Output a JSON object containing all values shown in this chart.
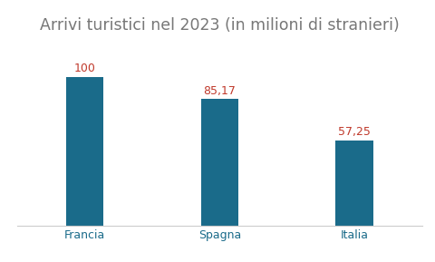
{
  "title": "Arrivi turistici nel 2023 (in milioni di stranieri)",
  "categories": [
    "Francia",
    "Spagna",
    "Italia"
  ],
  "values": [
    100,
    85.17,
    57.25
  ],
  "labels": [
    "100",
    "85,17",
    "57,25"
  ],
  "bar_color": "#1a6b8a",
  "background_color": "#ffffff",
  "title_color": "#777777",
  "label_color": "#c0392b",
  "xlabel_color": "#1a6b8a",
  "title_fontsize": 12.5,
  "label_fontsize": 9,
  "xlabel_fontsize": 9,
  "ylim": [
    0,
    120
  ],
  "bar_width": 0.28
}
